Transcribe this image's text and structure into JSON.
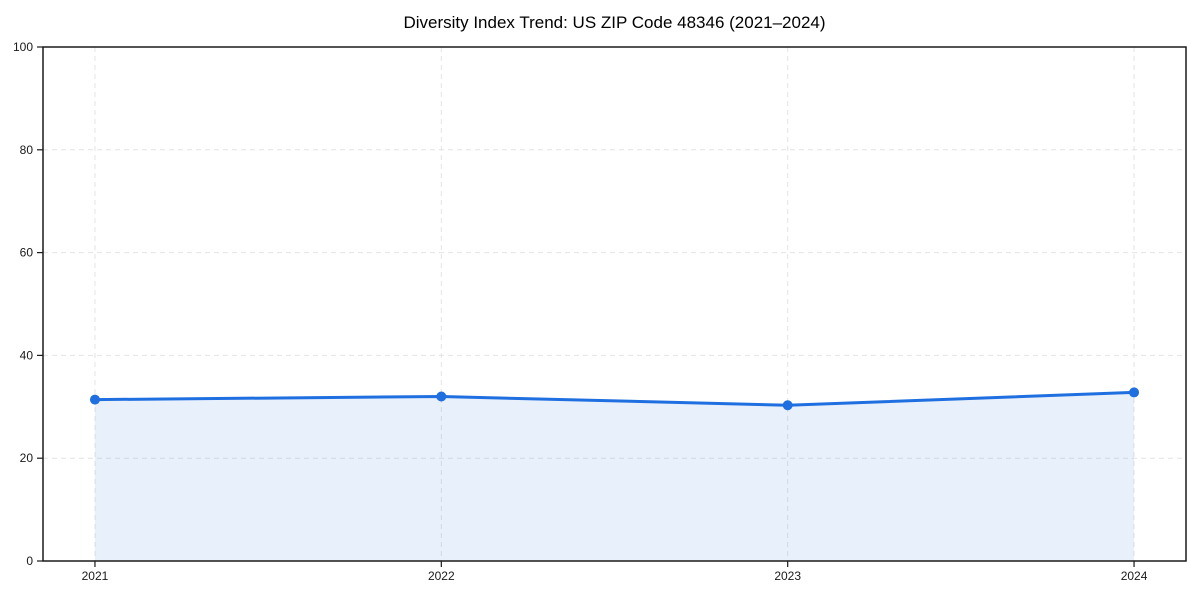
{
  "page": {
    "background": "#ffffff"
  },
  "chart_data": {
    "type": "area",
    "title": "Diversity Index Trend: US ZIP Code 48346 (2021–2024)",
    "categories": [
      "2021",
      "2022",
      "2023",
      "2024"
    ],
    "series": [
      {
        "name": "Diversity Index",
        "values": [
          31.4,
          32.0,
          30.3,
          32.8
        ]
      }
    ],
    "xlabel": "",
    "ylabel": "",
    "ylim": [
      0,
      100
    ],
    "yticks": [
      0,
      20,
      40,
      60,
      80,
      100
    ],
    "grid": true,
    "grid_style": "dashed",
    "legend_position": "none",
    "marker": "circle",
    "colors": {
      "line": "#1f6fe0",
      "fill": "rgba(31,111,224,0.10)",
      "grid": "#e4e4e4",
      "spine": "#1a1a1a",
      "tick_label": "#1a1a1a",
      "title": "#000000"
    }
  }
}
